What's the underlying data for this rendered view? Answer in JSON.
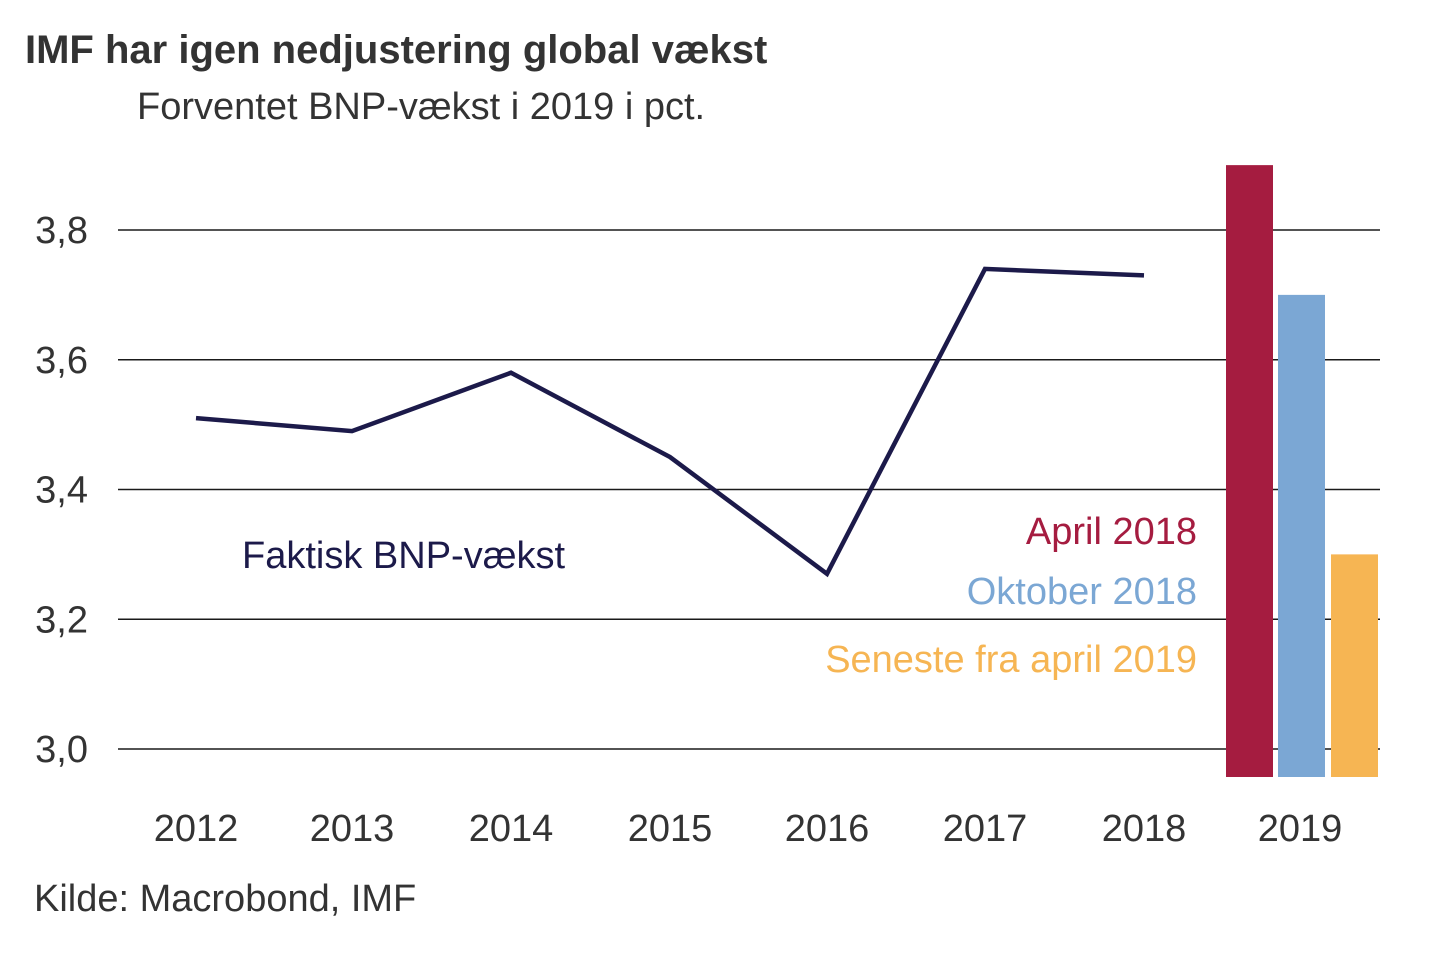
{
  "title": "IMF har igen nedjustering global vækst",
  "subtitle": "Forventet BNP-vækst i 2019 i pct.",
  "source": "Kilde: Macrobond, IMF",
  "chart_data": {
    "type": "line+bar",
    "title": "IMF har igen nedjustering global vækst",
    "subtitle": "Forventet BNP-vækst i 2019 i pct.",
    "xlabel": "",
    "ylabel": "",
    "ylim": [
      3.0,
      3.9
    ],
    "yticks": [
      3.0,
      3.2,
      3.4,
      3.6,
      3.8
    ],
    "ytick_labels": [
      "3,0",
      "3,2",
      "3,4",
      "3,6",
      "3,8"
    ],
    "categories": [
      "2012",
      "2013",
      "2014",
      "2015",
      "2016",
      "2017",
      "2018",
      "2019"
    ],
    "grid": true,
    "line_series": {
      "name": "Faktisk BNP-vækst",
      "color": "#1c1a4a",
      "x": [
        "2012",
        "2013",
        "2014",
        "2015",
        "2016",
        "2017",
        "2018"
      ],
      "values": [
        3.51,
        3.49,
        3.58,
        3.45,
        3.27,
        3.74,
        3.73
      ]
    },
    "bar_series": [
      {
        "name": "April 2018",
        "category": "2019",
        "value": 3.9,
        "color": "#a51c40"
      },
      {
        "name": "Oktober 2018",
        "category": "2019",
        "value": 3.7,
        "color": "#7ba7d4"
      },
      {
        "name": "Seneste fra april 2019",
        "category": "2019",
        "value": 3.3,
        "color": "#f6b553"
      }
    ],
    "legend_placement": "inline-right"
  }
}
